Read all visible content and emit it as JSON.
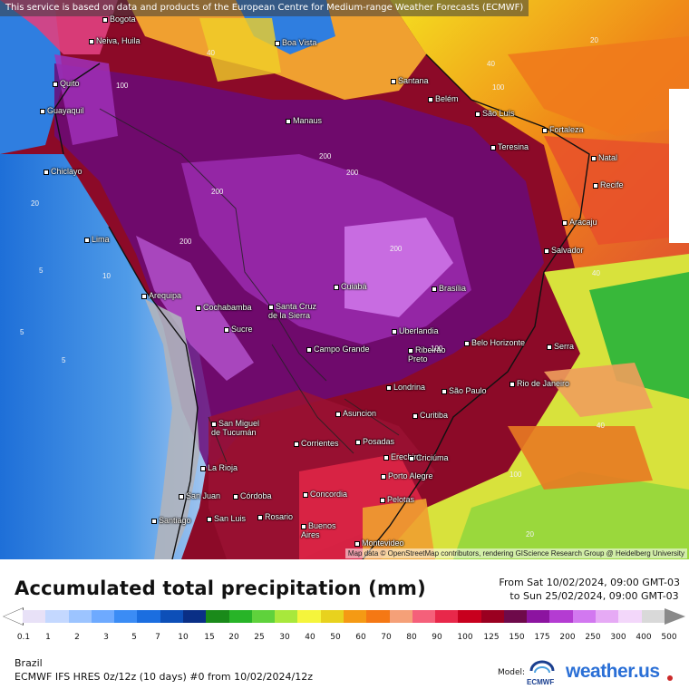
{
  "banner": "This service is based on data and products of the European Centre for Medium-range Weather Forecasts (ECMWF)",
  "attribution": "Map data © OpenStreetMap contributors, rendering GIScience Research Group @ Heidelberg University",
  "title": "Accumulated total precipitation (mm)",
  "date_from": "From Sat 10/02/2024, 09:00 GMT-03",
  "date_to": "to Sun 25/02/2024, 09:00 GMT-03",
  "region": "Brazil",
  "model_run": "ECMWF IFS HRES 0z/12z (10 days) #0 from  10/02/2024/12z",
  "model_label": "Model:",
  "ecmwf_text": "ECMWF",
  "brand": "weather.us",
  "legend": {
    "ticks": [
      "0.1",
      "1",
      "2",
      "3",
      "5",
      "7",
      "10",
      "15",
      "20",
      "25",
      "30",
      "40",
      "50",
      "60",
      "70",
      "80",
      "90",
      "100",
      "125",
      "150",
      "175",
      "200",
      "250",
      "300",
      "400",
      "500"
    ],
    "colors": [
      "#e8e1f7",
      "#c4d8ff",
      "#9cc4ff",
      "#6eaaff",
      "#3b8cf5",
      "#1b6ee0",
      "#0d4fb8",
      "#0a2f86",
      "#1a8a1a",
      "#28b428",
      "#5fd23c",
      "#a8e83c",
      "#f5f53c",
      "#e8d21e",
      "#f59a14",
      "#f57814",
      "#f5a078",
      "#f5607a",
      "#e8284a",
      "#c8001e",
      "#9a0020",
      "#6e0a4a",
      "#8c14a0",
      "#b43cd2",
      "#d278f0",
      "#e6aaf5",
      "#f3d7fa",
      "#d9d9d9"
    ]
  },
  "cities": [
    {
      "name": "Bogota"
    },
    {
      "name": "Neiva, Huila"
    },
    {
      "name": "Boa Vista"
    },
    {
      "name": "Quito"
    },
    {
      "name": "Guayaquil"
    },
    {
      "name": "Santana"
    },
    {
      "name": "Belém"
    },
    {
      "name": "São Luís"
    },
    {
      "name": "Manaus"
    },
    {
      "name": "Fortaleza"
    },
    {
      "name": "Teresina"
    },
    {
      "name": "Natal"
    },
    {
      "name": "Chiclayo"
    },
    {
      "name": "Recife"
    },
    {
      "name": "Aracaju"
    },
    {
      "name": "Lima"
    },
    {
      "name": "Salvador"
    },
    {
      "name": "Cuiabá"
    },
    {
      "name": "Brasília"
    },
    {
      "name": "Arequipa"
    },
    {
      "name": "Cochabamba"
    },
    {
      "name": "Santa Cruz\nde la Sierra"
    },
    {
      "name": "Uberlandia"
    },
    {
      "name": "Sucre"
    },
    {
      "name": "Campo Grande"
    },
    {
      "name": "Ribeirão\nPreto"
    },
    {
      "name": "Belo Horizonte"
    },
    {
      "name": "Serra"
    },
    {
      "name": "Londrina"
    },
    {
      "name": "São Paulo"
    },
    {
      "name": "Rio de Janeiro"
    },
    {
      "name": "Asuncion"
    },
    {
      "name": "Curitiba"
    },
    {
      "name": "San Miguel\nde Tucumán"
    },
    {
      "name": "Corrientes"
    },
    {
      "name": "Posadas"
    },
    {
      "name": "Erechim"
    },
    {
      "name": "Criciúma"
    },
    {
      "name": "La Rioja"
    },
    {
      "name": "Porto Alegre"
    },
    {
      "name": "San Juan"
    },
    {
      "name": "Córdoba"
    },
    {
      "name": "Concordia"
    },
    {
      "name": "Pelotas"
    },
    {
      "name": "Santiago"
    },
    {
      "name": "San Luis"
    },
    {
      "name": "Rosario"
    },
    {
      "name": "Buenos\nAires"
    },
    {
      "name": "Montevideo"
    }
  ],
  "contour_labels": [
    "20",
    "40",
    "100",
    "200",
    "40",
    "5",
    "10",
    "20",
    "40",
    "100",
    "200",
    "100",
    "40",
    "20",
    "200",
    "100",
    "5",
    "5",
    "200",
    "200"
  ]
}
